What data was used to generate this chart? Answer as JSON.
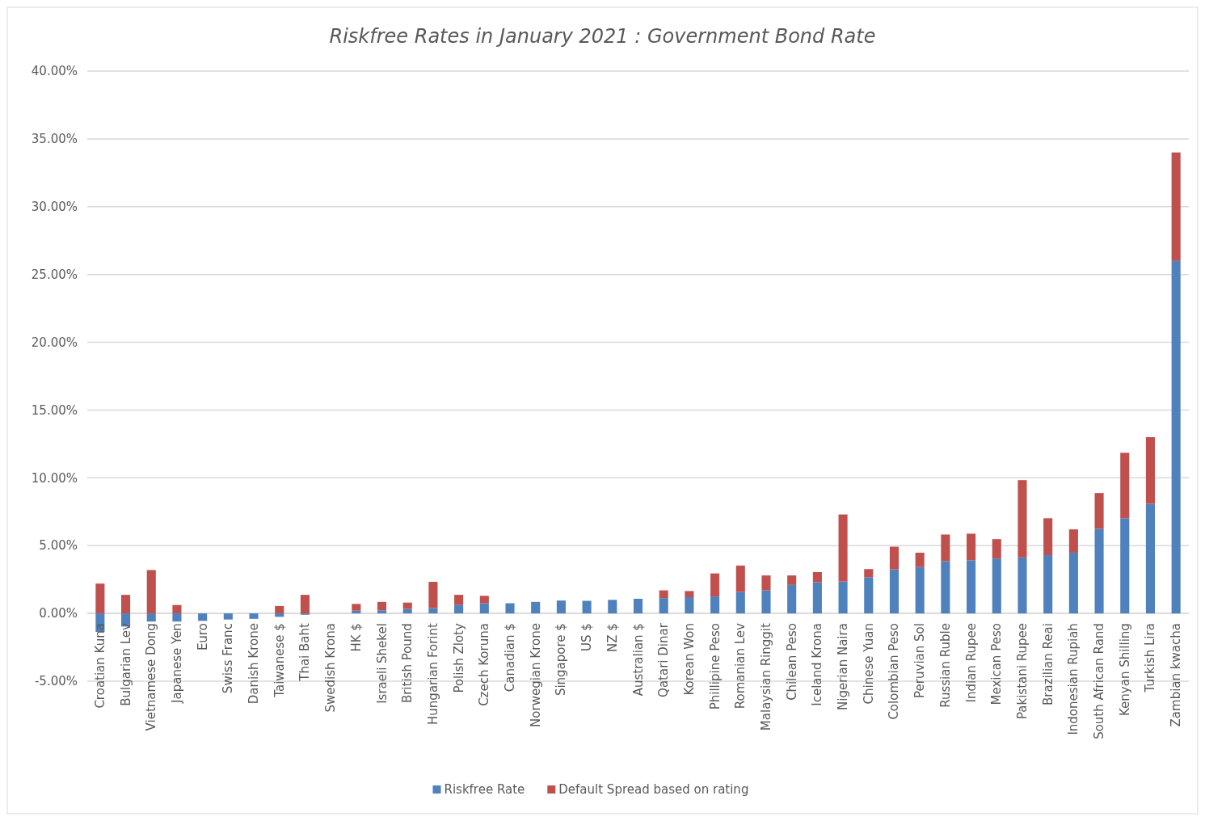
{
  "chart_data": {
    "type": "bar",
    "title": "Riskfree Rates in January 2021 : Government Bond Rate",
    "stacked": true,
    "grid": "y",
    "legend": "bottom",
    "categories": [
      "Croatian Kuna",
      "Bulgarian Lev",
      "Vietnamese Dong",
      "Japanese Yen",
      "Euro",
      "Swiss Franc",
      "Danish Krone",
      "Taiwanese $",
      "Thai Baht",
      "Swedish Krona",
      "HK $",
      "Israeli Shekel",
      "British Pound",
      "Hungarian Forint",
      "Polish Zloty",
      "Czech Koruna",
      "Canadian $",
      "Norwegian Krone",
      "Singapore $",
      "US $",
      "NZ $",
      "Australian $",
      "Qatari Dinar",
      "Korean Won",
      "Phillipine Peso",
      "Romanian Lev",
      "Malaysian Ringgit",
      "Chilean Peso",
      "Iceland Krona",
      "Nigerian Naira",
      "Chinese Yuan",
      "Colombian Peso",
      "Peruvian Sol",
      "Russian Ruble",
      "Indian Rupee",
      "Mexican Peso",
      "Pakistani Rupee",
      "Brazilian Reai",
      "Indonesian Rupiah",
      "South African Rand",
      "Kenyan Shilling",
      "Turkish Lira",
      "Zambian kwacha"
    ],
    "series": [
      {
        "name": "Riskfree Rate",
        "color": "#4f81bd",
        "values": [
          -1.37,
          -0.97,
          -0.6,
          -0.6,
          -0.55,
          -0.45,
          -0.4,
          -0.25,
          -0.1,
          0,
          0.2,
          0.23,
          0.33,
          0.4,
          0.62,
          0.75,
          0.75,
          0.85,
          0.95,
          0.93,
          1.0,
          1.08,
          1.13,
          1.2,
          1.25,
          1.58,
          1.7,
          2.1,
          2.3,
          2.35,
          2.67,
          3.25,
          3.42,
          3.86,
          3.92,
          4.05,
          4.13,
          4.3,
          4.48,
          6.24,
          7.02,
          8.08,
          26.0
        ]
      },
      {
        "name": "Default Spread based on rating",
        "color": "#c0504d",
        "values": [
          2.2,
          1.37,
          3.2,
          0.62,
          0,
          0,
          0,
          0.55,
          1.37,
          0,
          0.5,
          0.62,
          0.47,
          1.93,
          0.75,
          0.55,
          0,
          0,
          0,
          0,
          0,
          0,
          0.57,
          0.45,
          1.7,
          1.95,
          1.1,
          0.7,
          0.75,
          4.95,
          0.6,
          1.67,
          1.06,
          1.96,
          1.96,
          1.43,
          5.7,
          2.72,
          1.72,
          2.64,
          4.83,
          4.92,
          8.0
        ]
      }
    ],
    "ylim": [
      -5,
      40
    ],
    "yticks": [
      {
        "value": -5,
        "label": "-5.00%"
      },
      {
        "value": 0,
        "label": "0.00%"
      },
      {
        "value": 5,
        "label": "5.00%"
      },
      {
        "value": 10,
        "label": "10.00%"
      },
      {
        "value": 15,
        "label": "15.00%"
      },
      {
        "value": 20,
        "label": "20.00%"
      },
      {
        "value": 25,
        "label": "25.00%"
      },
      {
        "value": 30,
        "label": "30.00%"
      },
      {
        "value": 35,
        "label": "35.00%"
      },
      {
        "value": 40,
        "label": "40.00%"
      }
    ]
  }
}
